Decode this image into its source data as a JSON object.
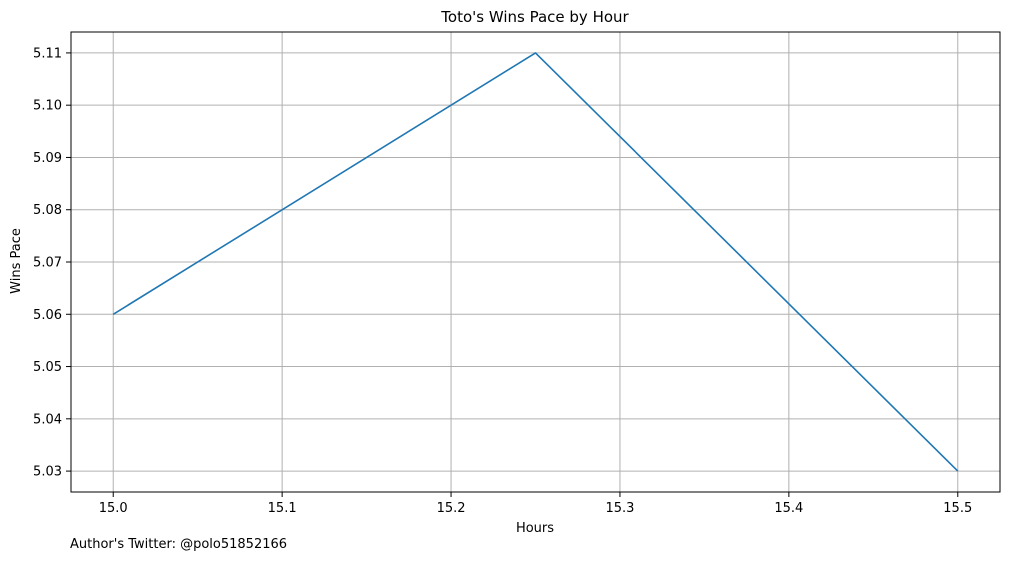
{
  "chart_data": {
    "type": "line",
    "title": "Toto's Wins Pace by Hour",
    "xlabel": "Hours",
    "ylabel": "Wins Pace",
    "x": [
      15.0,
      15.25,
      15.5
    ],
    "series": [
      {
        "values": [
          5.06,
          5.11,
          5.03
        ],
        "color": "#1f77b4"
      }
    ],
    "xlim": [
      14.975,
      15.525
    ],
    "ylim": [
      5.026,
      5.114
    ],
    "xticks": [
      15.0,
      15.1,
      15.2,
      15.3,
      15.4,
      15.5
    ],
    "xtick_labels": [
      "15.0",
      "15.1",
      "15.2",
      "15.3",
      "15.4",
      "15.5"
    ],
    "yticks": [
      5.03,
      5.04,
      5.05,
      5.06,
      5.07,
      5.08,
      5.09,
      5.1,
      5.11
    ],
    "ytick_labels": [
      "5.03",
      "5.04",
      "5.05",
      "5.06",
      "5.07",
      "5.08",
      "5.09",
      "5.10",
      "5.11"
    ],
    "grid": true
  },
  "footnote": "Author's Twitter: @polo51852166",
  "colors": {
    "line": "#1f77b4",
    "grid": "#b0b0b0",
    "axis": "#000000"
  }
}
